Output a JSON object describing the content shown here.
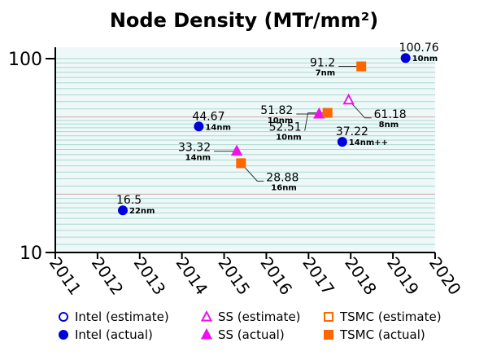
{
  "chart_data": {
    "type": "scatter",
    "title": "Node Density (MTr/mm²)",
    "yscale": "log",
    "ylim": [
      10,
      110
    ],
    "xlim": [
      2011,
      2020
    ],
    "yticks": [
      {
        "value": 10,
        "label": "10"
      },
      {
        "value": 100,
        "label": "100"
      }
    ],
    "xticks": [
      "2011",
      "2012",
      "2013",
      "2014",
      "2015",
      "2016",
      "2017",
      "2018",
      "2019",
      "2020"
    ],
    "background_color": "#eef8f8",
    "colors": {
      "intel": "#0000dd",
      "ss": "#ee11ee",
      "tsmc": "#ff6600"
    },
    "points": [
      {
        "series": "intel",
        "actual": true,
        "x": 2012.6,
        "y": 16.5,
        "value_label": "16.5",
        "node_label": "22nm",
        "label_pos": "right"
      },
      {
        "series": "intel",
        "actual": true,
        "x": 2014.4,
        "y": 44.67,
        "value_label": "44.67",
        "node_label": "14nm",
        "label_pos": "right"
      },
      {
        "series": "ss",
        "actual": true,
        "x": 2015.3,
        "y": 33.32,
        "value_label": "33.32",
        "node_label": "14nm",
        "label_pos": "left"
      },
      {
        "series": "tsmc",
        "actual": true,
        "x": 2015.4,
        "y": 28.88,
        "value_label": "28.88",
        "node_label": "16nm",
        "label_pos": "right"
      },
      {
        "series": "ss",
        "actual": true,
        "x": 2017.25,
        "y": 51.82,
        "value_label": "51.82",
        "node_label": "10nm",
        "label_pos": "left"
      },
      {
        "series": "tsmc",
        "actual": true,
        "x": 2017.45,
        "y": 52.51,
        "value_label": "52.51",
        "node_label": "10nm",
        "label_pos": "left"
      },
      {
        "series": "intel",
        "actual": true,
        "x": 2017.8,
        "y": 37.22,
        "value_label": "37.22",
        "node_label": "14nm++",
        "label_pos": "right"
      },
      {
        "series": "ss",
        "actual": false,
        "x": 2017.95,
        "y": 61.18,
        "value_label": "61.18",
        "node_label": "8nm",
        "label_pos": "right"
      },
      {
        "series": "tsmc",
        "actual": true,
        "x": 2018.25,
        "y": 91.2,
        "value_label": "91.2",
        "node_label": "7nm",
        "label_pos": "left"
      },
      {
        "series": "intel",
        "actual": true,
        "x": 2019.3,
        "y": 100.76,
        "value_label": "100.76",
        "node_label": "10nm",
        "label_pos": "right"
      }
    ],
    "legend": [
      {
        "label": "Intel (estimate)",
        "series": "intel",
        "filled": false,
        "shape": "circle"
      },
      {
        "label": "Intel (actual)",
        "series": "intel",
        "filled": true,
        "shape": "circle"
      },
      {
        "label": "SS (estimate)",
        "series": "ss",
        "filled": false,
        "shape": "triangle"
      },
      {
        "label": "SS (actual)",
        "series": "ss",
        "filled": true,
        "shape": "triangle"
      },
      {
        "label": "TSMC (estimate)",
        "series": "tsmc",
        "filled": false,
        "shape": "square"
      },
      {
        "label": "TSMC (actual)",
        "series": "tsmc",
        "filled": true,
        "shape": "square"
      }
    ],
    "legend_position": "bottom",
    "grid": true
  }
}
